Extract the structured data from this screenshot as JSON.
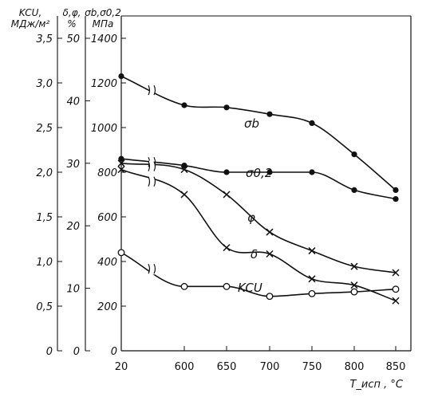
{
  "chart_data": {
    "type": "line",
    "xlabel": "T_исп , °C",
    "x_ticks": [
      "20",
      "600",
      "650",
      "700",
      "750",
      "800",
      "850"
    ],
    "y_axes": [
      {
        "label_lines": [
          "KCU,",
          "МДж/м²"
        ],
        "ylim": [
          0,
          3.75
        ],
        "ticks": [
          "0",
          "0,5",
          "1,0",
          "1,5",
          "2,0",
          "2,5",
          "3,0",
          "3,5"
        ],
        "tick_values": [
          0,
          0.5,
          1.0,
          1.5,
          2.0,
          2.5,
          3.0,
          3.5
        ]
      },
      {
        "label_lines": [
          "δ,φ,",
          "%"
        ],
        "ylim": [
          0,
          53.57
        ],
        "ticks": [
          "0",
          "10",
          "20",
          "30",
          "40",
          "50"
        ],
        "tick_values": [
          0,
          10,
          20,
          30,
          40,
          50
        ]
      },
      {
        "label_lines": [
          "σb,σ0,2",
          "МПа"
        ],
        "ylim": [
          0,
          1500
        ],
        "ticks": [
          "0",
          "200",
          "400",
          "600",
          "800",
          "1000",
          "1200",
          "1400"
        ],
        "tick_values": [
          0,
          200,
          400,
          600,
          800,
          1000,
          1200,
          1400
        ]
      }
    ],
    "series": [
      {
        "name": "σb",
        "axis": 2,
        "marker": "dot",
        "x": [
          "20",
          "600",
          "650",
          "700",
          "750",
          "800",
          "850"
        ],
        "values": [
          1230,
          1100,
          1090,
          1060,
          1020,
          880,
          720
        ]
      },
      {
        "name": "σ0,2",
        "axis": 2,
        "marker": "dot",
        "x": [
          "20",
          "600",
          "650",
          "700",
          "750",
          "800",
          "850"
        ],
        "values": [
          860,
          830,
          800,
          800,
          800,
          720,
          680
        ]
      },
      {
        "name": "φ",
        "axis": 1,
        "marker": "cross",
        "x": [
          "20",
          "600",
          "650",
          "700",
          "750",
          "800",
          "850"
        ],
        "values": [
          30,
          29,
          25,
          19,
          16,
          13.5,
          12.5
        ]
      },
      {
        "name": "δ",
        "axis": 1,
        "marker": "cross",
        "x": [
          "20",
          "600",
          "650",
          "700",
          "750",
          "800",
          "850"
        ],
        "values": [
          29,
          25,
          16.5,
          15.5,
          11.5,
          10.5,
          8
        ]
      },
      {
        "name": "KCU",
        "axis": 0,
        "marker": "circle",
        "x": [
          "20",
          "600",
          "650",
          "700",
          "750",
          "800",
          "850"
        ],
        "values": [
          1.1,
          0.72,
          0.72,
          0.61,
          0.64,
          0.66,
          0.69
        ]
      }
    ]
  }
}
